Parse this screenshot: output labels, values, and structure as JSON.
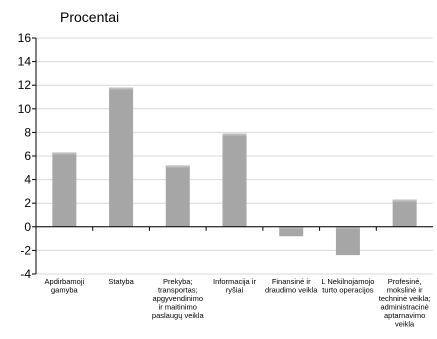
{
  "chart_data": {
    "type": "bar",
    "ylabel": "Procentai",
    "categories": [
      [
        "Apdirbamoji",
        "gamyba"
      ],
      [
        "Statyba"
      ],
      [
        "Prekyba;",
        "transportas;",
        "apgyvendinimo",
        "ir maitinimo",
        "paslaugų veikla"
      ],
      [
        "Informacija ir",
        "ryšiai"
      ],
      [
        "Finansinė ir",
        "draudimo veikla"
      ],
      [
        "L Nekilnojamojo",
        "turto operacijos"
      ],
      [
        "Profesinė,",
        "mokslinė ir",
        "techninė veikla;",
        "administracinė",
        "aptarnavimo",
        "veikla"
      ]
    ],
    "values": [
      6.3,
      11.8,
      5.2,
      7.9,
      -0.8,
      -2.4,
      2.3
    ],
    "ylim": [
      -4,
      16
    ],
    "yticks": [
      -4,
      -2,
      0,
      2,
      4,
      6,
      8,
      10,
      12,
      14,
      16
    ],
    "grid": true,
    "bar_color": "#a6a6a6"
  }
}
